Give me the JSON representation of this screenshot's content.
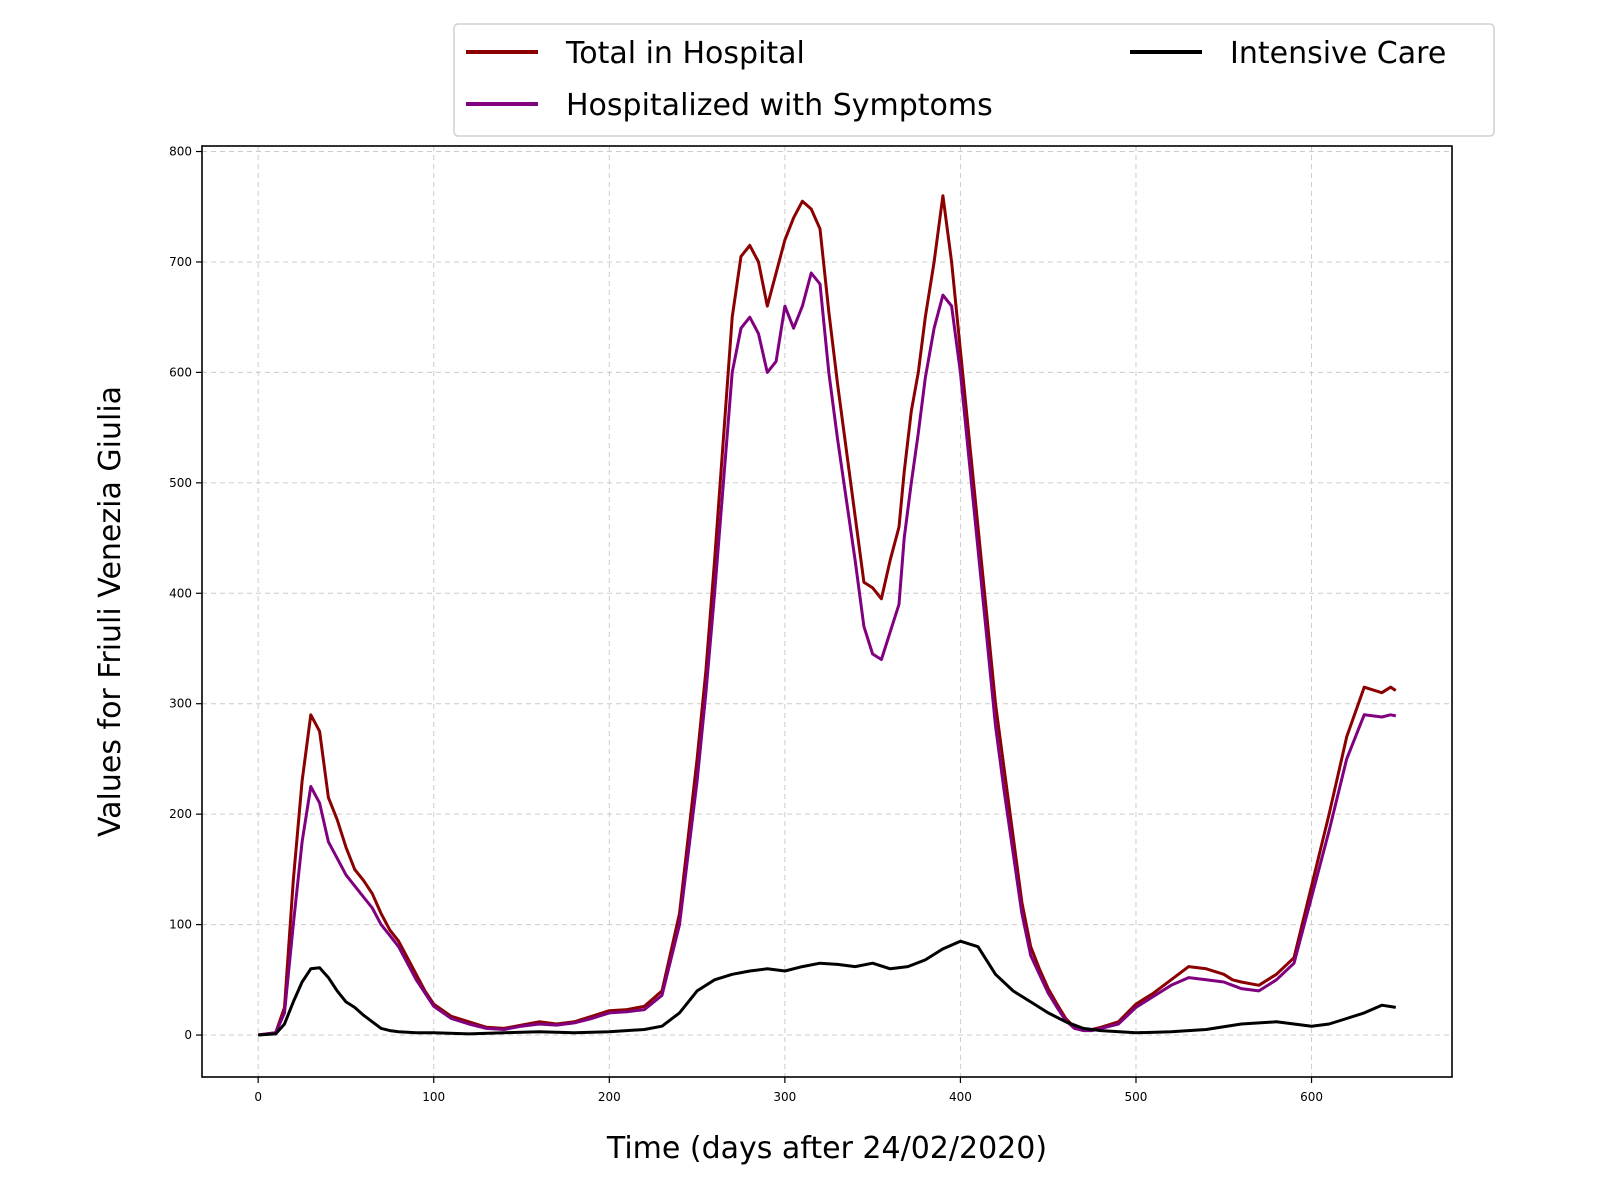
{
  "chart_data": {
    "type": "line",
    "title": "",
    "xlabel": "Time (days after 24/02/2020)",
    "ylabel": "Values for Friuli Venezia Giulia",
    "xlim": [
      -32,
      680
    ],
    "ylim": [
      -38,
      805
    ],
    "xticks": [
      0,
      100,
      200,
      300,
      400,
      500,
      600
    ],
    "yticks": [
      0,
      100,
      200,
      300,
      400,
      500,
      600,
      700,
      800
    ],
    "grid": true,
    "legend_position": "top, above plot",
    "series": [
      {
        "name": "Total in Hospital",
        "color": "#8b0000",
        "x": [
          0,
          10,
          15,
          20,
          25,
          30,
          35,
          40,
          45,
          50,
          55,
          60,
          65,
          70,
          75,
          80,
          85,
          90,
          95,
          100,
          110,
          120,
          130,
          140,
          150,
          160,
          170,
          180,
          190,
          200,
          210,
          220,
          230,
          240,
          250,
          255,
          260,
          265,
          270,
          275,
          280,
          285,
          290,
          295,
          300,
          305,
          310,
          315,
          320,
          325,
          330,
          335,
          340,
          345,
          350,
          355,
          360,
          365,
          368,
          372,
          376,
          380,
          385,
          390,
          395,
          400,
          405,
          410,
          415,
          420,
          425,
          430,
          435,
          440,
          445,
          450,
          455,
          460,
          465,
          470,
          475,
          480,
          490,
          500,
          510,
          520,
          530,
          540,
          550,
          555,
          560,
          570,
          580,
          590,
          600,
          610,
          620,
          630,
          640,
          645,
          648
        ],
        "y": [
          0,
          2,
          25,
          140,
          230,
          290,
          275,
          215,
          195,
          170,
          150,
          140,
          128,
          110,
          95,
          85,
          70,
          55,
          40,
          28,
          17,
          12,
          7,
          6,
          9,
          12,
          10,
          12,
          17,
          22,
          23,
          26,
          40,
          110,
          250,
          330,
          430,
          540,
          650,
          705,
          715,
          700,
          660,
          690,
          720,
          740,
          755,
          748,
          730,
          655,
          590,
          530,
          470,
          410,
          405,
          395,
          430,
          460,
          510,
          565,
          600,
          650,
          700,
          760,
          700,
          620,
          540,
          460,
          380,
          300,
          240,
          180,
          120,
          80,
          60,
          42,
          28,
          15,
          7,
          5,
          5,
          7,
          12,
          28,
          38,
          50,
          62,
          60,
          55,
          50,
          48,
          45,
          55,
          70,
          135,
          200,
          270,
          315,
          310,
          315,
          312
        ]
      },
      {
        "name": "Hospitalized with Symptoms",
        "color": "#800080",
        "x": [
          0,
          10,
          15,
          20,
          25,
          30,
          35,
          40,
          45,
          50,
          55,
          60,
          65,
          70,
          75,
          80,
          85,
          90,
          95,
          100,
          110,
          120,
          130,
          140,
          150,
          160,
          170,
          180,
          190,
          200,
          210,
          220,
          230,
          240,
          250,
          255,
          260,
          265,
          270,
          275,
          280,
          285,
          290,
          295,
          300,
          305,
          310,
          315,
          320,
          325,
          330,
          335,
          340,
          345,
          350,
          355,
          360,
          365,
          368,
          372,
          376,
          380,
          385,
          390,
          395,
          400,
          405,
          410,
          415,
          420,
          425,
          430,
          435,
          440,
          445,
          450,
          455,
          460,
          465,
          470,
          475,
          480,
          490,
          500,
          510,
          520,
          530,
          540,
          550,
          555,
          560,
          570,
          580,
          590,
          600,
          610,
          620,
          630,
          640,
          645,
          648
        ],
        "y": [
          0,
          2,
          20,
          100,
          175,
          225,
          210,
          175,
          160,
          145,
          135,
          125,
          115,
          100,
          90,
          80,
          65,
          50,
          38,
          26,
          15,
          10,
          6,
          5,
          8,
          10,
          9,
          11,
          15,
          20,
          21,
          23,
          36,
          100,
          230,
          310,
          400,
          500,
          600,
          640,
          650,
          635,
          600,
          610,
          660,
          640,
          660,
          690,
          680,
          600,
          540,
          485,
          430,
          370,
          345,
          340,
          365,
          390,
          450,
          500,
          545,
          595,
          640,
          670,
          660,
          600,
          520,
          440,
          360,
          280,
          220,
          165,
          110,
          72,
          55,
          38,
          25,
          13,
          6,
          4,
          4,
          6,
          10,
          25,
          35,
          45,
          52,
          50,
          48,
          45,
          42,
          40,
          50,
          65,
          125,
          185,
          250,
          290,
          288,
          290,
          289
        ]
      },
      {
        "name": "Intensive Care",
        "color": "#000000",
        "x": [
          0,
          10,
          15,
          20,
          25,
          30,
          35,
          40,
          45,
          50,
          55,
          60,
          65,
          70,
          75,
          80,
          90,
          100,
          120,
          140,
          160,
          180,
          200,
          220,
          230,
          240,
          250,
          260,
          270,
          280,
          290,
          300,
          310,
          320,
          330,
          340,
          350,
          360,
          370,
          380,
          390,
          400,
          410,
          420,
          430,
          440,
          450,
          460,
          470,
          480,
          500,
          520,
          540,
          560,
          580,
          600,
          610,
          620,
          630,
          640,
          648
        ],
        "y": [
          0,
          1,
          10,
          30,
          48,
          60,
          61,
          52,
          40,
          30,
          25,
          18,
          12,
          6,
          4,
          3,
          2,
          2,
          1,
          2,
          3,
          2,
          3,
          5,
          8,
          20,
          40,
          50,
          55,
          58,
          60,
          58,
          62,
          65,
          64,
          62,
          65,
          60,
          62,
          68,
          78,
          85,
          80,
          55,
          40,
          30,
          20,
          12,
          6,
          4,
          2,
          3,
          5,
          10,
          12,
          8,
          10,
          15,
          20,
          27,
          25
        ]
      }
    ]
  }
}
